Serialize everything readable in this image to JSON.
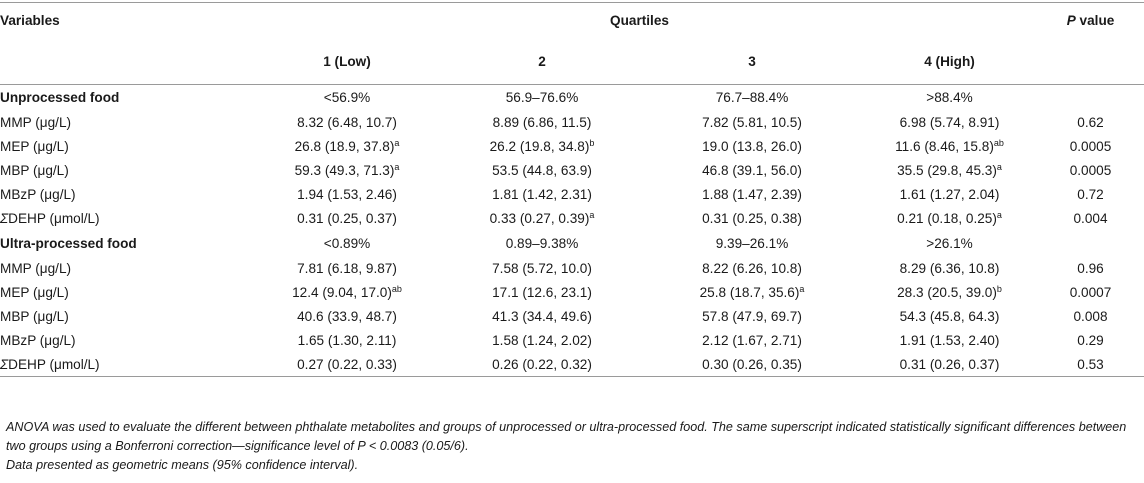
{
  "header": {
    "variables_label": "Variables",
    "quartiles_label": "Quartiles",
    "p_label": "P",
    "p_suffix": " value",
    "quartile_columns": [
      "1 (Low)",
      "2",
      "3",
      "4 (High)"
    ]
  },
  "groups": [
    {
      "title": "Unprocessed food",
      "ranges": [
        "<56.9%",
        "56.9–76.6%",
        "76.7–88.4%",
        ">88.4%"
      ],
      "rows": [
        {
          "sigma": "",
          "label": "MMP (μg/L)",
          "cells": [
            {
              "v": "8.32 (6.48, 10.7)",
              "s": ""
            },
            {
              "v": "8.89 (6.86, 11.5)",
              "s": ""
            },
            {
              "v": "7.82 (5.81, 10.5)",
              "s": ""
            },
            {
              "v": "6.98 (5.74, 8.91)",
              "s": ""
            }
          ],
          "p": "0.62"
        },
        {
          "sigma": "",
          "label": "MEP (μg/L)",
          "cells": [
            {
              "v": "26.8 (18.9, 37.8)",
              "s": "a"
            },
            {
              "v": "26.2 (19.8, 34.8)",
              "s": "b"
            },
            {
              "v": "19.0 (13.8, 26.0)",
              "s": ""
            },
            {
              "v": "11.6 (8.46, 15.8)",
              "s": "ab"
            }
          ],
          "p": "0.0005"
        },
        {
          "sigma": "",
          "label": "MBP (μg/L)",
          "cells": [
            {
              "v": "59.3 (49.3, 71.3)",
              "s": "a"
            },
            {
              "v": "53.5 (44.8, 63.9)",
              "s": ""
            },
            {
              "v": "46.8 (39.1, 56.0)",
              "s": ""
            },
            {
              "v": "35.5 (29.8, 45.3)",
              "s": "a"
            }
          ],
          "p": "0.0005"
        },
        {
          "sigma": "",
          "label": "MBzP (μg/L)",
          "cells": [
            {
              "v": "1.94 (1.53, 2.46)",
              "s": ""
            },
            {
              "v": "1.81 (1.42, 2.31)",
              "s": ""
            },
            {
              "v": "1.88 (1.47, 2.39)",
              "s": ""
            },
            {
              "v": "1.61 (1.27, 2.04)",
              "s": ""
            }
          ],
          "p": "0.72"
        },
        {
          "sigma": "Σ",
          "label": "DEHP (μmol/L)",
          "cells": [
            {
              "v": "0.31 (0.25, 0.37)",
              "s": ""
            },
            {
              "v": "0.33 (0.27, 0.39)",
              "s": "a"
            },
            {
              "v": "0.31 (0.25, 0.38)",
              "s": ""
            },
            {
              "v": "0.21 (0.18, 0.25)",
              "s": "a"
            }
          ],
          "p": "0.004"
        }
      ]
    },
    {
      "title": "Ultra-processed food",
      "ranges": [
        "<0.89%",
        "0.89–9.38%",
        "9.39–26.1%",
        ">26.1%"
      ],
      "rows": [
        {
          "sigma": "",
          "label": "MMP (μg/L)",
          "cells": [
            {
              "v": "7.81 (6.18, 9.87)",
              "s": ""
            },
            {
              "v": "7.58 (5.72, 10.0)",
              "s": ""
            },
            {
              "v": "8.22 (6.26, 10.8)",
              "s": ""
            },
            {
              "v": "8.29 (6.36, 10.8)",
              "s": ""
            }
          ],
          "p": "0.96"
        },
        {
          "sigma": "",
          "label": "MEP (μg/L)",
          "cells": [
            {
              "v": "12.4 (9.04, 17.0)",
              "s": "ab"
            },
            {
              "v": "17.1 (12.6, 23.1)",
              "s": ""
            },
            {
              "v": "25.8 (18.7, 35.6)",
              "s": "a"
            },
            {
              "v": "28.3 (20.5, 39.0)",
              "s": "b"
            }
          ],
          "p": "0.0007"
        },
        {
          "sigma": "",
          "label": "MBP (μg/L)",
          "cells": [
            {
              "v": "40.6 (33.9, 48.7)",
              "s": ""
            },
            {
              "v": "41.3 (34.4, 49.6)",
              "s": ""
            },
            {
              "v": "57.8 (47.9, 69.7)",
              "s": ""
            },
            {
              "v": "54.3 (45.8, 64.3)",
              "s": ""
            }
          ],
          "p": "0.008"
        },
        {
          "sigma": "",
          "label": "MBzP (μg/L)",
          "cells": [
            {
              "v": "1.65 (1.30, 2.11)",
              "s": ""
            },
            {
              "v": "1.58 (1.24, 2.02)",
              "s": ""
            },
            {
              "v": "2.12 (1.67, 2.71)",
              "s": ""
            },
            {
              "v": "1.91 (1.53, 2.40)",
              "s": ""
            }
          ],
          "p": "0.29"
        },
        {
          "sigma": "Σ",
          "label": "DEHP (μmol/L)",
          "cells": [
            {
              "v": "0.27 (0.22, 0.33)",
              "s": ""
            },
            {
              "v": "0.26 (0.22, 0.32)",
              "s": ""
            },
            {
              "v": "0.30 (0.26, 0.35)",
              "s": ""
            },
            {
              "v": "0.31 (0.26, 0.37)",
              "s": ""
            }
          ],
          "p": "0.53"
        }
      ]
    }
  ],
  "notes": {
    "line1": "ANOVA was used to evaluate the different between phthalate metabolites and groups of unprocessed or ultra-processed food. The same superscript indicated statistically significant differences between two groups using a Bonferroni correction—significance level of P < 0.0083 (0.05/6).",
    "line2": "Data presented as geometric means (95% confidence interval)."
  }
}
